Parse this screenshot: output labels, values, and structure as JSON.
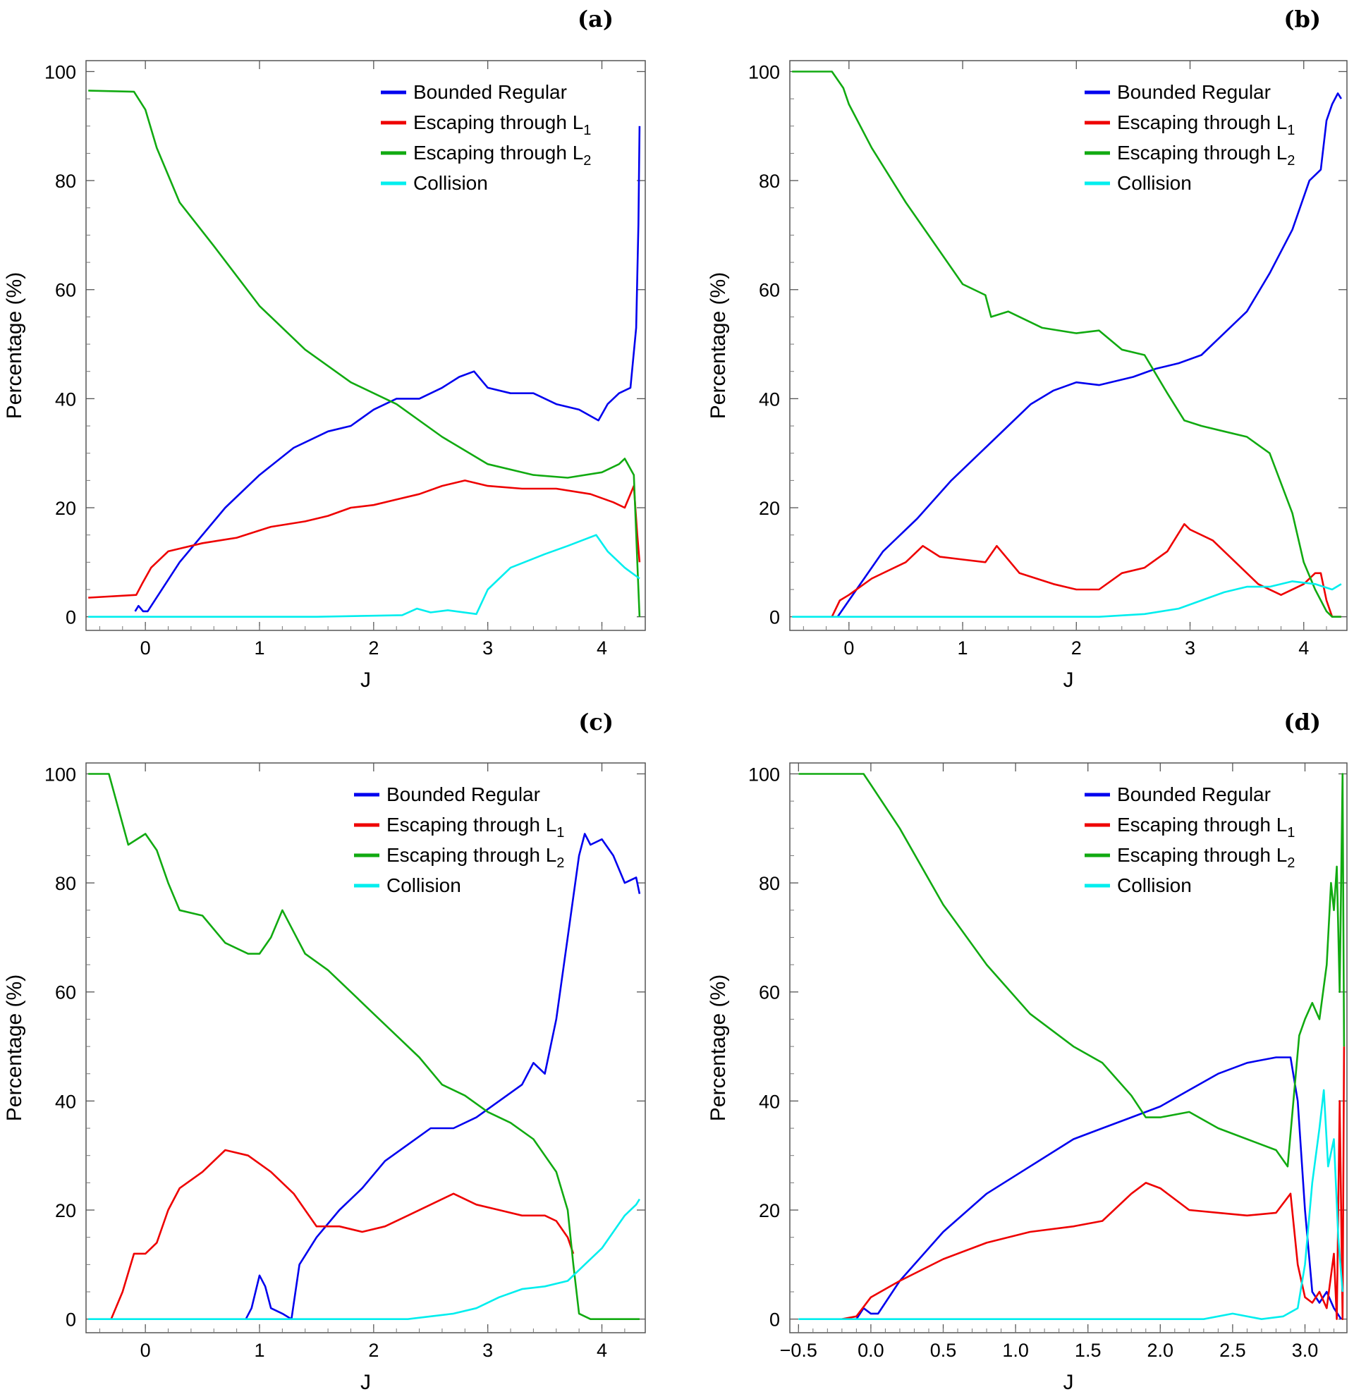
{
  "series_colors": {
    "Bounded Regular": "#0000ee",
    "Escaping through L1": "#ee0000",
    "Escaping through L2": "#11aa11",
    "Collision": "#00eeee"
  },
  "chart_data": [
    {
      "panel": "(a)",
      "type": "line",
      "xlabel": "J",
      "ylabel": "Percentage (%)",
      "xlim": [
        -0.52,
        4.38
      ],
      "ylim": [
        -2.5,
        102
      ],
      "xticks": [
        0,
        1,
        2,
        3,
        4
      ],
      "xtick_labels": [
        "0",
        "1",
        "2",
        "3",
        "4"
      ],
      "yticks": [
        0,
        20,
        40,
        60,
        80,
        100
      ],
      "ytick_labels": [
        "0",
        "20",
        "40",
        "60",
        "80",
        "100"
      ],
      "legend_position": "top-right",
      "series": [
        {
          "name": "Bounded Regular",
          "sub": "",
          "color": "#0000ee",
          "x": [
            -0.09,
            -0.06,
            -0.02,
            0.02,
            0.3,
            0.7,
            1.0,
            1.3,
            1.6,
            1.8,
            2.0,
            2.2,
            2.4,
            2.6,
            2.75,
            2.88,
            3.0,
            3.2,
            3.4,
            3.6,
            3.8,
            3.97,
            4.05,
            4.15,
            4.25,
            4.3,
            4.32,
            4.33
          ],
          "y": [
            1,
            2,
            1,
            1,
            10,
            20,
            26,
            31,
            34,
            35,
            38,
            40,
            40,
            42,
            44,
            45,
            42,
            41,
            41,
            39,
            38,
            36,
            39,
            41,
            42,
            53,
            72,
            90
          ]
        },
        {
          "name": "Escaping through L",
          "sub": "1",
          "color": "#ee0000",
          "x": [
            -0.5,
            -0.08,
            -0.03,
            0.05,
            0.2,
            0.5,
            0.8,
            1.1,
            1.4,
            1.6,
            1.8,
            2.0,
            2.2,
            2.4,
            2.6,
            2.8,
            3.0,
            3.3,
            3.6,
            3.9,
            4.1,
            4.2,
            4.28,
            4.31,
            4.33
          ],
          "y": [
            3.5,
            4,
            6,
            9,
            12,
            13.5,
            14.5,
            16.5,
            17.5,
            18.5,
            20,
            20.5,
            21.5,
            22.5,
            24,
            25,
            24,
            23.5,
            23.5,
            22.5,
            21,
            20,
            24,
            15,
            10
          ]
        },
        {
          "name": "Escaping through L",
          "sub": "2",
          "color": "#11aa11",
          "x": [
            -0.5,
            -0.1,
            0.0,
            0.1,
            0.3,
            0.6,
            1.0,
            1.4,
            1.8,
            2.2,
            2.6,
            3.0,
            3.4,
            3.7,
            4.0,
            4.15,
            4.2,
            4.28,
            4.31,
            4.33
          ],
          "y": [
            96.5,
            96.3,
            93,
            86,
            76,
            68,
            57,
            49,
            43,
            39,
            33,
            28,
            26,
            25.5,
            26.5,
            28,
            29,
            26,
            10,
            0
          ]
        },
        {
          "name": "Collision",
          "sub": "",
          "color": "#00eeee",
          "x": [
            -0.5,
            1.5,
            2.25,
            2.38,
            2.5,
            2.65,
            2.9,
            3.0,
            3.2,
            3.5,
            3.7,
            3.95,
            4.05,
            4.2,
            4.33
          ],
          "y": [
            0,
            0,
            0.3,
            1.5,
            0.8,
            1.2,
            0.5,
            5,
            9,
            11.5,
            13,
            15,
            12,
            9,
            7
          ]
        }
      ]
    },
    {
      "panel": "(b)",
      "type": "line",
      "xlabel": "J",
      "ylabel": "Percentage (%)",
      "xlim": [
        -0.52,
        4.38
      ],
      "ylim": [
        -2.5,
        102
      ],
      "xticks": [
        0,
        1,
        2,
        3,
        4
      ],
      "xtick_labels": [
        "0",
        "1",
        "2",
        "3",
        "4"
      ],
      "yticks": [
        0,
        20,
        40,
        60,
        80,
        100
      ],
      "ytick_labels": [
        "0",
        "20",
        "40",
        "60",
        "80",
        "100"
      ],
      "legend_position": "top-right",
      "series": [
        {
          "name": "Bounded Regular",
          "sub": "",
          "color": "#0000ee",
          "x": [
            -0.1,
            0.0,
            0.3,
            0.6,
            0.9,
            1.2,
            1.4,
            1.6,
            1.8,
            2.0,
            2.2,
            2.5,
            2.7,
            2.9,
            3.1,
            3.3,
            3.5,
            3.7,
            3.9,
            4.05,
            4.15,
            4.2,
            4.25,
            4.3,
            4.33
          ],
          "y": [
            0,
            3,
            12,
            18,
            25,
            31,
            35,
            39,
            41.5,
            43,
            42.5,
            44,
            45.5,
            46.5,
            48,
            52,
            56,
            63,
            71,
            80,
            82,
            91,
            94,
            96,
            95
          ]
        },
        {
          "name": "Escaping through L",
          "sub": "1",
          "color": "#ee0000",
          "x": [
            -0.15,
            -0.08,
            0.0,
            0.2,
            0.5,
            0.65,
            0.8,
            1.0,
            1.2,
            1.3,
            1.5,
            1.8,
            2.0,
            2.2,
            2.4,
            2.6,
            2.8,
            2.95,
            3.0,
            3.2,
            3.4,
            3.6,
            3.8,
            4.0,
            4.1,
            4.15,
            4.2,
            4.25,
            4.33
          ],
          "y": [
            0,
            3,
            4,
            7,
            10,
            13,
            11,
            10.5,
            10,
            13,
            8,
            6,
            5,
            5,
            8,
            9,
            12,
            17,
            16,
            14,
            10,
            6,
            4,
            6,
            8,
            8,
            3,
            0,
            0
          ]
        },
        {
          "name": "Escaping through L",
          "sub": "2",
          "color": "#11aa11",
          "x": [
            -0.5,
            -0.15,
            -0.05,
            0.0,
            0.2,
            0.5,
            0.7,
            1.0,
            1.2,
            1.25,
            1.4,
            1.7,
            2.0,
            2.2,
            2.4,
            2.6,
            2.8,
            2.95,
            3.1,
            3.3,
            3.5,
            3.7,
            3.9,
            4.0,
            4.1,
            4.2,
            4.25,
            4.33
          ],
          "y": [
            100,
            100,
            97,
            94,
            86,
            76,
            70,
            61,
            59,
            55,
            56,
            53,
            52,
            52.5,
            49,
            48,
            41,
            36,
            35,
            34,
            33,
            30,
            19,
            10,
            5,
            1,
            0,
            0
          ]
        },
        {
          "name": "Collision",
          "sub": "",
          "color": "#00eeee",
          "x": [
            -0.5,
            2.2,
            2.6,
            2.9,
            3.1,
            3.3,
            3.5,
            3.7,
            3.9,
            4.1,
            4.25,
            4.33
          ],
          "y": [
            0,
            0,
            0.5,
            1.5,
            3,
            4.5,
            5.5,
            5.5,
            6.5,
            6,
            5,
            6
          ]
        }
      ]
    },
    {
      "panel": "(c)",
      "type": "line",
      "xlabel": "J",
      "ylabel": "Percentage (%)",
      "xlim": [
        -0.52,
        4.38
      ],
      "ylim": [
        -2.5,
        102
      ],
      "xticks": [
        0,
        1,
        2,
        3,
        4
      ],
      "xtick_labels": [
        "0",
        "1",
        "2",
        "3",
        "4"
      ],
      "yticks": [
        0,
        20,
        40,
        60,
        80,
        100
      ],
      "ytick_labels": [
        "0",
        "20",
        "40",
        "60",
        "80",
        "100"
      ],
      "legend_position": "top-right",
      "series": [
        {
          "name": "Bounded Regular",
          "sub": "",
          "color": "#0000ee",
          "x": [
            0.88,
            0.93,
            1.0,
            1.05,
            1.1,
            1.2,
            1.28,
            1.35,
            1.5,
            1.7,
            1.9,
            2.1,
            2.3,
            2.5,
            2.7,
            2.9,
            3.1,
            3.3,
            3.4,
            3.5,
            3.6,
            3.7,
            3.8,
            3.85,
            3.9,
            4.0,
            4.1,
            4.2,
            4.3,
            4.33
          ],
          "y": [
            0,
            2,
            8,
            6,
            2,
            1,
            0,
            10,
            15,
            20,
            24,
            29,
            32,
            35,
            35,
            37,
            40,
            43,
            47,
            45,
            55,
            70,
            85,
            89,
            87,
            88,
            85,
            80,
            81,
            78
          ]
        },
        {
          "name": "Escaping through L",
          "sub": "1",
          "color": "#ee0000",
          "x": [
            -0.3,
            -0.2,
            -0.1,
            0.0,
            0.1,
            0.2,
            0.3,
            0.5,
            0.7,
            0.9,
            1.1,
            1.3,
            1.5,
            1.7,
            1.9,
            2.1,
            2.3,
            2.5,
            2.7,
            2.9,
            3.1,
            3.3,
            3.5,
            3.6,
            3.7,
            3.75
          ],
          "y": [
            0,
            5,
            12,
            12,
            14,
            20,
            24,
            27,
            31,
            30,
            27,
            23,
            17,
            17,
            16,
            17,
            19,
            21,
            23,
            21,
            20,
            19,
            19,
            18,
            15,
            12
          ]
        },
        {
          "name": "Escaping through L",
          "sub": "2",
          "color": "#11aa11",
          "x": [
            -0.5,
            -0.32,
            -0.15,
            0.0,
            0.1,
            0.2,
            0.3,
            0.5,
            0.7,
            0.9,
            1.0,
            1.1,
            1.2,
            1.3,
            1.4,
            1.6,
            1.8,
            2.0,
            2.2,
            2.4,
            2.6,
            2.8,
            3.0,
            3.2,
            3.4,
            3.6,
            3.7,
            3.75,
            3.8,
            3.9,
            4.0,
            4.33
          ],
          "y": [
            100,
            100,
            87,
            89,
            86,
            80,
            75,
            74,
            69,
            67,
            67,
            70,
            75,
            71,
            67,
            64,
            60,
            56,
            52,
            48,
            43,
            41,
            38,
            36,
            33,
            27,
            20,
            10,
            1,
            0,
            0,
            0
          ]
        },
        {
          "name": "Collision",
          "sub": "",
          "color": "#00eeee",
          "x": [
            -0.5,
            2.3,
            2.5,
            2.7,
            2.9,
            3.1,
            3.3,
            3.5,
            3.7,
            3.85,
            4.0,
            4.1,
            4.2,
            4.3,
            4.33
          ],
          "y": [
            0,
            0,
            0.5,
            1,
            2,
            4,
            5.5,
            6,
            7,
            10,
            13,
            16,
            19,
            21,
            22
          ]
        }
      ]
    },
    {
      "panel": "(d)",
      "type": "line",
      "xlabel": "J",
      "ylabel": "Percentage (%)",
      "xlim": [
        -0.56,
        3.29
      ],
      "ylim": [
        -2.5,
        102
      ],
      "xticks": [
        -0.5,
        0.0,
        0.5,
        1.0,
        1.5,
        2.0,
        2.5,
        3.0
      ],
      "xtick_labels": [
        "−0.5",
        "0.0",
        "0.5",
        "1.0",
        "1.5",
        "2.0",
        "2.5",
        "3.0"
      ],
      "yticks": [
        0,
        20,
        40,
        60,
        80,
        100
      ],
      "ytick_labels": [
        "0",
        "20",
        "40",
        "60",
        "80",
        "100"
      ],
      "legend_position": "top-right",
      "series": [
        {
          "name": "Bounded Regular",
          "sub": "",
          "color": "#0000ee",
          "x": [
            -0.1,
            -0.05,
            0.0,
            0.05,
            0.2,
            0.5,
            0.8,
            1.1,
            1.4,
            1.6,
            1.8,
            2.0,
            2.2,
            2.4,
            2.6,
            2.8,
            2.9,
            2.95,
            3.0,
            3.05,
            3.1,
            3.15,
            3.2,
            3.25
          ],
          "y": [
            0,
            2,
            1,
            1,
            7,
            16,
            23,
            28,
            33,
            35,
            37,
            39,
            42,
            45,
            47,
            48,
            48,
            40,
            20,
            5,
            3,
            5,
            2,
            0
          ]
        },
        {
          "name": "Escaping through L",
          "sub": "1",
          "color": "#ee0000",
          "x": [
            -0.2,
            -0.1,
            0.0,
            0.2,
            0.5,
            0.8,
            1.1,
            1.4,
            1.6,
            1.8,
            1.9,
            2.0,
            2.2,
            2.4,
            2.6,
            2.8,
            2.9,
            2.95,
            3.0,
            3.05,
            3.1,
            3.15,
            3.2,
            3.22,
            3.24,
            3.26,
            3.27
          ],
          "y": [
            0,
            0.5,
            4,
            7,
            11,
            14,
            16,
            17,
            18,
            23,
            25,
            24,
            20,
            19.5,
            19,
            19.5,
            23,
            10,
            4,
            3,
            5,
            2,
            12,
            0,
            40,
            0,
            50
          ]
        },
        {
          "name": "Escaping through L",
          "sub": "2",
          "color": "#11aa11",
          "x": [
            -0.5,
            -0.15,
            -0.05,
            0.0,
            0.2,
            0.5,
            0.8,
            1.1,
            1.4,
            1.6,
            1.8,
            1.9,
            2.0,
            2.2,
            2.4,
            2.6,
            2.8,
            2.88,
            2.92,
            2.96,
            3.0,
            3.05,
            3.1,
            3.15,
            3.18,
            3.2,
            3.22,
            3.24,
            3.26,
            3.27
          ],
          "y": [
            100,
            100,
            100,
            98,
            90,
            76,
            65,
            56,
            50,
            47,
            41,
            37,
            37,
            38,
            35,
            33,
            31,
            28,
            40,
            52,
            55,
            58,
            55,
            65,
            80,
            75,
            83,
            60,
            100,
            50
          ]
        },
        {
          "name": "Collision",
          "sub": "",
          "color": "#00eeee",
          "x": [
            -0.5,
            2.3,
            2.5,
            2.7,
            2.85,
            2.95,
            3.0,
            3.05,
            3.1,
            3.13,
            3.16,
            3.2,
            3.23,
            3.26
          ],
          "y": [
            0,
            0,
            1,
            0,
            0.5,
            2,
            10,
            25,
            35,
            42,
            28,
            33,
            15,
            5
          ]
        }
      ]
    }
  ]
}
